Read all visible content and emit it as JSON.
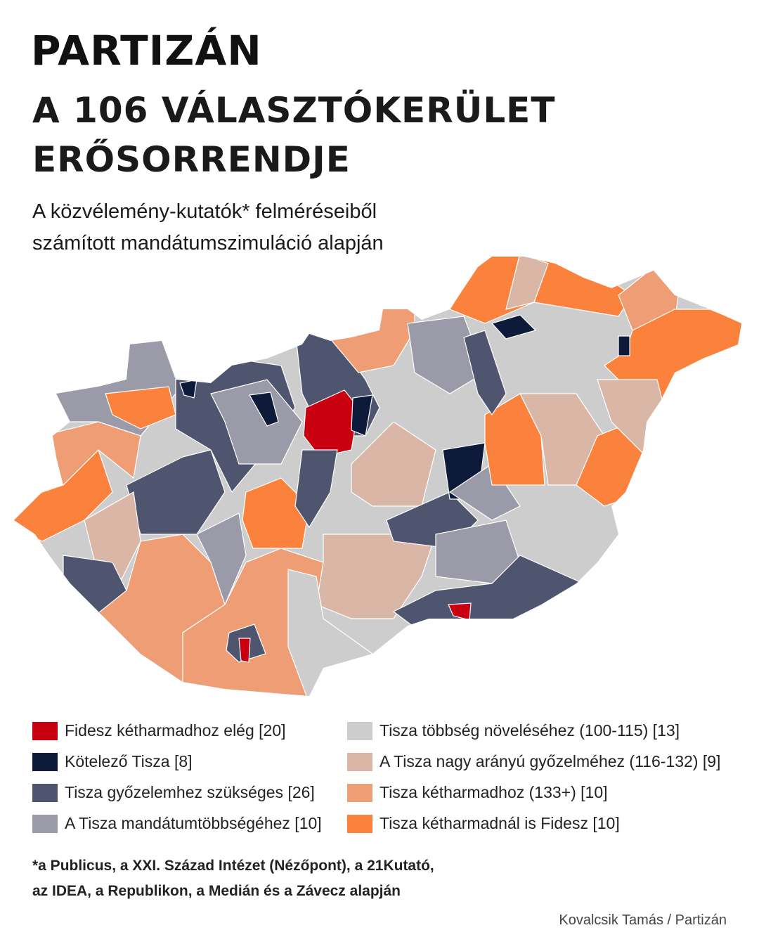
{
  "header": {
    "brand": "PARTIZÁN",
    "title_line1": "A 106 VÁLASZTÓKERÜLET",
    "title_line2": "ERŐSORRENDJE",
    "subtitle_line1": "A közvélemény-kutatók* felméréseiből",
    "subtitle_line2": "számított mandátumszimuláció alapján"
  },
  "legend": [
    {
      "label": "Fidesz kétharmadhoz elég [20]",
      "color": "#c8000f"
    },
    {
      "label": "Kötelező Tisza [8]",
      "color": "#0e1a3a"
    },
    {
      "label": "Tisza győzelemhez szükséges [26]",
      "color": "#4f556f"
    },
    {
      "label": "A Tisza mandátumtöbbségéhez [10]",
      "color": "#9a9aa8"
    },
    {
      "label": "Tisza többség növeléséhez (100-115) [13]",
      "color": "#cdcdcd"
    },
    {
      "label": "A Tisza nagy arányú győzelméhez (116-132) [9]",
      "color": "#d9b6a6"
    },
    {
      "label": "Tisza kétharmadhoz (133+) [10]",
      "color": "#ee9d74"
    },
    {
      "label": "Tisza kétharmadnál is Fidesz [10]",
      "color": "#fb823c"
    }
  ],
  "footnote_line1": "*a Publicus, a XXI. Század Intézet (Nézőpont), a 21Kutató,",
  "footnote_line2": "az IDEA, a Republikon, a Medián és a Závecz alapján",
  "credit": "Kovalcsik Tamás / Partizán"
}
